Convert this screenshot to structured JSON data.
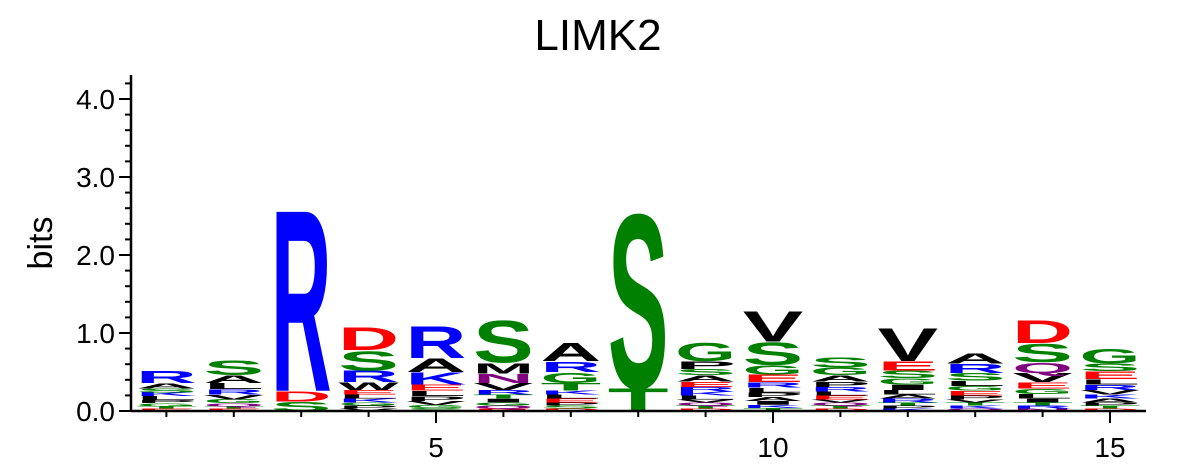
{
  "chart_data": {
    "type": "sequence-logo",
    "title": "LIMK2",
    "ylabel": "bits",
    "xlabel": "",
    "ylim": [
      0,
      4.3
    ],
    "xlim": [
      0.5,
      15.5
    ],
    "y_ticks": [
      {
        "value": 0.0,
        "label": "0.0"
      },
      {
        "value": 1.0,
        "label": "1.0"
      },
      {
        "value": 2.0,
        "label": "2.0"
      },
      {
        "value": 3.0,
        "label": "3.0"
      },
      {
        "value": 4.0,
        "label": "4.0"
      }
    ],
    "x_ticks": [
      {
        "value": 5,
        "label": "5"
      },
      {
        "value": 10,
        "label": "10"
      },
      {
        "value": 15,
        "label": "15"
      }
    ],
    "colors": {
      "polar": "#008000",
      "basic": "#0000ff",
      "acidic": "#ff0000",
      "hydrophobic": "#000000",
      "amide": "#800080"
    },
    "positions": [
      {
        "pos": 1,
        "letters": [
          {
            "aa": "R",
            "bits": 0.16,
            "color": "#0000ff"
          },
          {
            "aa": "A",
            "bits": 0.07,
            "color": "#000000"
          },
          {
            "aa": "L",
            "bits": 0.05,
            "color": "#000000"
          },
          {
            "aa": "K",
            "bits": 0.05,
            "color": "#0000ff"
          },
          {
            "aa": "S",
            "bits": 0.05,
            "color": "#008000"
          },
          {
            "aa": "G",
            "bits": 0.04,
            "color": "#008000"
          },
          {
            "aa": "P",
            "bits": 0.04,
            "color": "#000000"
          },
          {
            "aa": "E",
            "bits": 0.03,
            "color": "#ff0000"
          },
          {
            "aa": "T",
            "bits": 0.03,
            "color": "#008000"
          }
        ]
      },
      {
        "pos": 2,
        "letters": [
          {
            "aa": "S",
            "bits": 0.2,
            "color": "#008000"
          },
          {
            "aa": "A",
            "bits": 0.1,
            "color": "#000000"
          },
          {
            "aa": "L",
            "bits": 0.08,
            "color": "#000000"
          },
          {
            "aa": "R",
            "bits": 0.07,
            "color": "#0000ff"
          },
          {
            "aa": "V",
            "bits": 0.06,
            "color": "#000000"
          },
          {
            "aa": "G",
            "bits": 0.05,
            "color": "#008000"
          },
          {
            "aa": "Q",
            "bits": 0.04,
            "color": "#800080"
          },
          {
            "aa": "E",
            "bits": 0.03,
            "color": "#ff0000"
          },
          {
            "aa": "T",
            "bits": 0.03,
            "color": "#008000"
          }
        ]
      },
      {
        "pos": 3,
        "letters": [
          {
            "aa": "R",
            "bits": 2.4,
            "color": "#0000ff"
          },
          {
            "aa": "D",
            "bits": 0.14,
            "color": "#ff0000"
          },
          {
            "aa": "S",
            "bits": 0.12,
            "color": "#008000"
          }
        ]
      },
      {
        "pos": 4,
        "letters": [
          {
            "aa": "D",
            "bits": 0.3,
            "color": "#ff0000"
          },
          {
            "aa": "S",
            "bits": 0.26,
            "color": "#008000"
          },
          {
            "aa": "R",
            "bits": 0.15,
            "color": "#0000ff"
          },
          {
            "aa": "W",
            "bits": 0.1,
            "color": "#000000"
          },
          {
            "aa": "E",
            "bits": 0.06,
            "color": "#ff0000"
          },
          {
            "aa": "K",
            "bits": 0.05,
            "color": "#0000ff"
          },
          {
            "aa": "L",
            "bits": 0.05,
            "color": "#000000"
          },
          {
            "aa": "P",
            "bits": 0.04,
            "color": "#000000"
          },
          {
            "aa": "G",
            "bits": 0.04,
            "color": "#008000"
          },
          {
            "aa": "V",
            "bits": 0.03,
            "color": "#000000"
          }
        ]
      },
      {
        "pos": 5,
        "letters": [
          {
            "aa": "R",
            "bits": 0.42,
            "color": "#0000ff"
          },
          {
            "aa": "A",
            "bits": 0.18,
            "color": "#000000"
          },
          {
            "aa": "K",
            "bits": 0.16,
            "color": "#0000ff"
          },
          {
            "aa": "E",
            "bits": 0.08,
            "color": "#ff0000"
          },
          {
            "aa": "L",
            "bits": 0.07,
            "color": "#000000"
          },
          {
            "aa": "P",
            "bits": 0.06,
            "color": "#000000"
          },
          {
            "aa": "V",
            "bits": 0.05,
            "color": "#000000"
          },
          {
            "aa": "S",
            "bits": 0.04,
            "color": "#008000"
          },
          {
            "aa": "G",
            "bits": 0.04,
            "color": "#008000"
          }
        ]
      },
      {
        "pos": 6,
        "letters": [
          {
            "aa": "S",
            "bits": 0.56,
            "color": "#008000"
          },
          {
            "aa": "M",
            "bits": 0.14,
            "color": "#000000"
          },
          {
            "aa": "N",
            "bits": 0.12,
            "color": "#800080"
          },
          {
            "aa": "V",
            "bits": 0.09,
            "color": "#000000"
          },
          {
            "aa": "R",
            "bits": 0.06,
            "color": "#0000ff"
          },
          {
            "aa": "I",
            "bits": 0.05,
            "color": "#000000"
          },
          {
            "aa": "T",
            "bits": 0.05,
            "color": "#008000"
          },
          {
            "aa": "Q",
            "bits": 0.04,
            "color": "#800080"
          },
          {
            "aa": "G",
            "bits": 0.04,
            "color": "#008000"
          },
          {
            "aa": "E",
            "bits": 0.03,
            "color": "#ff0000"
          }
        ]
      },
      {
        "pos": 7,
        "letters": [
          {
            "aa": "A",
            "bits": 0.24,
            "color": "#000000"
          },
          {
            "aa": "G",
            "bits": 0.14,
            "color": "#008000"
          },
          {
            "aa": "R",
            "bits": 0.14,
            "color": "#0000ff"
          },
          {
            "aa": "T",
            "bits": 0.1,
            "color": "#008000"
          },
          {
            "aa": "E",
            "bits": 0.05,
            "color": "#ff0000"
          },
          {
            "aa": "L",
            "bits": 0.05,
            "color": "#000000"
          },
          {
            "aa": "K",
            "bits": 0.05,
            "color": "#0000ff"
          },
          {
            "aa": "S",
            "bits": 0.04,
            "color": "#008000"
          },
          {
            "aa": "P",
            "bits": 0.04,
            "color": "#000000"
          },
          {
            "aa": "D",
            "bits": 0.03,
            "color": "#ff0000"
          }
        ]
      },
      {
        "pos": 8,
        "letters": [
          {
            "aa": "S",
            "bits": 2.3,
            "color": "#008000"
          },
          {
            "aa": "T",
            "bits": 0.3,
            "color": "#008000"
          }
        ]
      },
      {
        "pos": 9,
        "letters": [
          {
            "aa": "G",
            "bits": 0.24,
            "color": "#008000"
          },
          {
            "aa": "P",
            "bits": 0.1,
            "color": "#000000"
          },
          {
            "aa": "A",
            "bits": 0.08,
            "color": "#000000"
          },
          {
            "aa": "S",
            "bits": 0.08,
            "color": "#008000"
          },
          {
            "aa": "E",
            "bits": 0.07,
            "color": "#ff0000"
          },
          {
            "aa": "R",
            "bits": 0.06,
            "color": "#0000ff"
          },
          {
            "aa": "L",
            "bits": 0.05,
            "color": "#000000"
          },
          {
            "aa": "K",
            "bits": 0.05,
            "color": "#0000ff"
          },
          {
            "aa": "T",
            "bits": 0.04,
            "color": "#008000"
          },
          {
            "aa": "Q",
            "bits": 0.04,
            "color": "#800080"
          },
          {
            "aa": "V",
            "bits": 0.04,
            "color": "#000000"
          },
          {
            "aa": "D",
            "bits": 0.03,
            "color": "#ff0000"
          }
        ]
      },
      {
        "pos": 10,
        "letters": [
          {
            "aa": "V",
            "bits": 0.4,
            "color": "#000000"
          },
          {
            "aa": "S",
            "bits": 0.3,
            "color": "#008000"
          },
          {
            "aa": "G",
            "bits": 0.12,
            "color": "#008000"
          },
          {
            "aa": "E",
            "bits": 0.1,
            "color": "#ff0000"
          },
          {
            "aa": "R",
            "bits": 0.07,
            "color": "#0000ff"
          },
          {
            "aa": "P",
            "bits": 0.06,
            "color": "#000000"
          },
          {
            "aa": "L",
            "bits": 0.06,
            "color": "#000000"
          },
          {
            "aa": "I",
            "bits": 0.05,
            "color": "#000000"
          },
          {
            "aa": "A",
            "bits": 0.05,
            "color": "#000000"
          },
          {
            "aa": "T",
            "bits": 0.04,
            "color": "#008000"
          },
          {
            "aa": "K",
            "bits": 0.04,
            "color": "#0000ff"
          }
        ]
      },
      {
        "pos": 11,
        "letters": [
          {
            "aa": "S",
            "bits": 0.14,
            "color": "#008000"
          },
          {
            "aa": "G",
            "bits": 0.1,
            "color": "#008000"
          },
          {
            "aa": "A",
            "bits": 0.08,
            "color": "#000000"
          },
          {
            "aa": "P",
            "bits": 0.07,
            "color": "#000000"
          },
          {
            "aa": "R",
            "bits": 0.06,
            "color": "#0000ff"
          },
          {
            "aa": "E",
            "bits": 0.05,
            "color": "#ff0000"
          },
          {
            "aa": "L",
            "bits": 0.05,
            "color": "#000000"
          },
          {
            "aa": "T",
            "bits": 0.04,
            "color": "#008000"
          },
          {
            "aa": "Q",
            "bits": 0.04,
            "color": "#800080"
          },
          {
            "aa": "V",
            "bits": 0.04,
            "color": "#000000"
          },
          {
            "aa": "D",
            "bits": 0.03,
            "color": "#ff0000"
          }
        ]
      },
      {
        "pos": 12,
        "letters": [
          {
            "aa": "V",
            "bits": 0.44,
            "color": "#000000"
          },
          {
            "aa": "E",
            "bits": 0.12,
            "color": "#ff0000"
          },
          {
            "aa": "S",
            "bits": 0.1,
            "color": "#008000"
          },
          {
            "aa": "G",
            "bits": 0.08,
            "color": "#008000"
          },
          {
            "aa": "I",
            "bits": 0.07,
            "color": "#000000"
          },
          {
            "aa": "L",
            "bits": 0.06,
            "color": "#000000"
          },
          {
            "aa": "R",
            "bits": 0.05,
            "color": "#0000ff"
          },
          {
            "aa": "A",
            "bits": 0.05,
            "color": "#000000"
          },
          {
            "aa": "P",
            "bits": 0.04,
            "color": "#000000"
          },
          {
            "aa": "T",
            "bits": 0.04,
            "color": "#008000"
          },
          {
            "aa": "K",
            "bits": 0.03,
            "color": "#0000ff"
          }
        ]
      },
      {
        "pos": 13,
        "letters": [
          {
            "aa": "A",
            "bits": 0.14,
            "color": "#000000"
          },
          {
            "aa": "R",
            "bits": 0.12,
            "color": "#0000ff"
          },
          {
            "aa": "S",
            "bits": 0.1,
            "color": "#008000"
          },
          {
            "aa": "L",
            "bits": 0.07,
            "color": "#000000"
          },
          {
            "aa": "E",
            "bits": 0.06,
            "color": "#ff0000"
          },
          {
            "aa": "G",
            "bits": 0.06,
            "color": "#008000"
          },
          {
            "aa": "P",
            "bits": 0.05,
            "color": "#000000"
          },
          {
            "aa": "K",
            "bits": 0.04,
            "color": "#0000ff"
          },
          {
            "aa": "T",
            "bits": 0.04,
            "color": "#008000"
          },
          {
            "aa": "V",
            "bits": 0.04,
            "color": "#000000"
          },
          {
            "aa": "Q",
            "bits": 0.03,
            "color": "#800080"
          }
        ]
      },
      {
        "pos": 14,
        "letters": [
          {
            "aa": "D",
            "bits": 0.3,
            "color": "#ff0000"
          },
          {
            "aa": "S",
            "bits": 0.24,
            "color": "#008000"
          },
          {
            "aa": "Q",
            "bits": 0.14,
            "color": "#800080"
          },
          {
            "aa": "V",
            "bits": 0.12,
            "color": "#000000"
          },
          {
            "aa": "E",
            "bits": 0.08,
            "color": "#ff0000"
          },
          {
            "aa": "G",
            "bits": 0.07,
            "color": "#008000"
          },
          {
            "aa": "L",
            "bits": 0.06,
            "color": "#000000"
          },
          {
            "aa": "I",
            "bits": 0.05,
            "color": "#000000"
          },
          {
            "aa": "R",
            "bits": 0.04,
            "color": "#0000ff"
          },
          {
            "aa": "T",
            "bits": 0.04,
            "color": "#008000"
          },
          {
            "aa": "N",
            "bits": 0.03,
            "color": "#800080"
          }
        ]
      },
      {
        "pos": 15,
        "letters": [
          {
            "aa": "G",
            "bits": 0.2,
            "color": "#008000"
          },
          {
            "aa": "E",
            "bits": 0.1,
            "color": "#ff0000"
          },
          {
            "aa": "S",
            "bits": 0.1,
            "color": "#008000"
          },
          {
            "aa": "R",
            "bits": 0.07,
            "color": "#0000ff"
          },
          {
            "aa": "L",
            "bits": 0.07,
            "color": "#000000"
          },
          {
            "aa": "V",
            "bits": 0.06,
            "color": "#000000"
          },
          {
            "aa": "A",
            "bits": 0.05,
            "color": "#000000"
          },
          {
            "aa": "K",
            "bits": 0.05,
            "color": "#0000ff"
          },
          {
            "aa": "T",
            "bits": 0.04,
            "color": "#008000"
          },
          {
            "aa": "P",
            "bits": 0.04,
            "color": "#000000"
          },
          {
            "aa": "D",
            "bits": 0.03,
            "color": "#ff0000"
          }
        ]
      }
    ]
  }
}
